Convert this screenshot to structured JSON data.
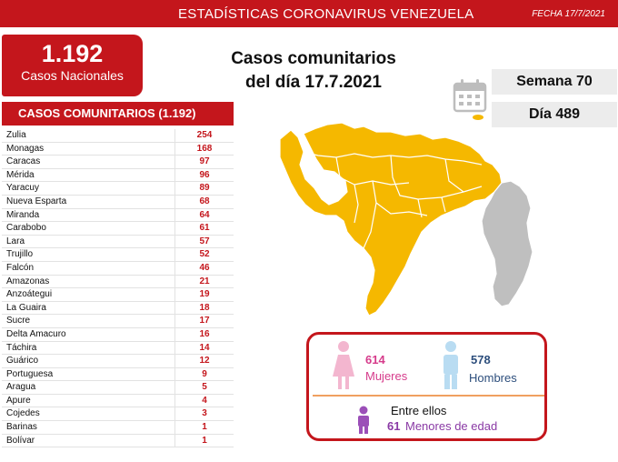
{
  "header": {
    "title": "ESTADÍSTICAS CORONAVIRUS VENEZUELA",
    "date": "FECHA 17/7/2021"
  },
  "national": {
    "count": "1.192",
    "label": "Casos Nacionales"
  },
  "heading": {
    "line1": "Casos comunitarios",
    "line2": "del día 17.7.2021"
  },
  "week_label": "Semana 70",
  "day_label": "Día 489",
  "table": {
    "header": "CASOS COMUNITARIOS (1.192)",
    "rows": [
      {
        "state": "Zulia",
        "value": "254"
      },
      {
        "state": "Monagas",
        "value": "168"
      },
      {
        "state": "Caracas",
        "value": "97"
      },
      {
        "state": "Mérida",
        "value": "96"
      },
      {
        "state": "Yaracuy",
        "value": "89"
      },
      {
        "state": "Nueva Esparta",
        "value": "68"
      },
      {
        "state": "Miranda",
        "value": "64"
      },
      {
        "state": "Carabobo",
        "value": "61"
      },
      {
        "state": "Lara",
        "value": "57"
      },
      {
        "state": "Trujillo",
        "value": "52"
      },
      {
        "state": "Falcón",
        "value": "46"
      },
      {
        "state": "Amazonas",
        "value": "21"
      },
      {
        "state": "Anzoátegui",
        "value": "19"
      },
      {
        "state": "La Guaira",
        "value": "18"
      },
      {
        "state": "Sucre",
        "value": "17"
      },
      {
        "state": "Delta Amacuro",
        "value": "16"
      },
      {
        "state": "Táchira",
        "value": "14"
      },
      {
        "state": "Guárico",
        "value": "12"
      },
      {
        "state": "Portuguesa",
        "value": "9"
      },
      {
        "state": "Aragua",
        "value": "5"
      },
      {
        "state": "Apure",
        "value": "4"
      },
      {
        "state": "Cojedes",
        "value": "3"
      },
      {
        "state": "Barinas",
        "value": "1"
      },
      {
        "state": "Bolívar",
        "value": "1"
      }
    ]
  },
  "gender": {
    "women_count": "614",
    "women_label": "Mujeres",
    "men_count": "578",
    "men_label": "Hombres",
    "among_label": "Entre ellos",
    "minors_count": "61",
    "minors_label": "Menores de edad"
  },
  "icons": {
    "calendar": "calendar-icon",
    "woman": "woman-icon",
    "man": "man-icon",
    "child": "child-icon"
  },
  "colors": {
    "brand_red": "#c4161c",
    "map_yellow": "#f5b800",
    "map_gray": "#bfbfbf",
    "women": "#d63b8b",
    "men": "#2d4e7c",
    "minors": "#8a3aa5"
  }
}
